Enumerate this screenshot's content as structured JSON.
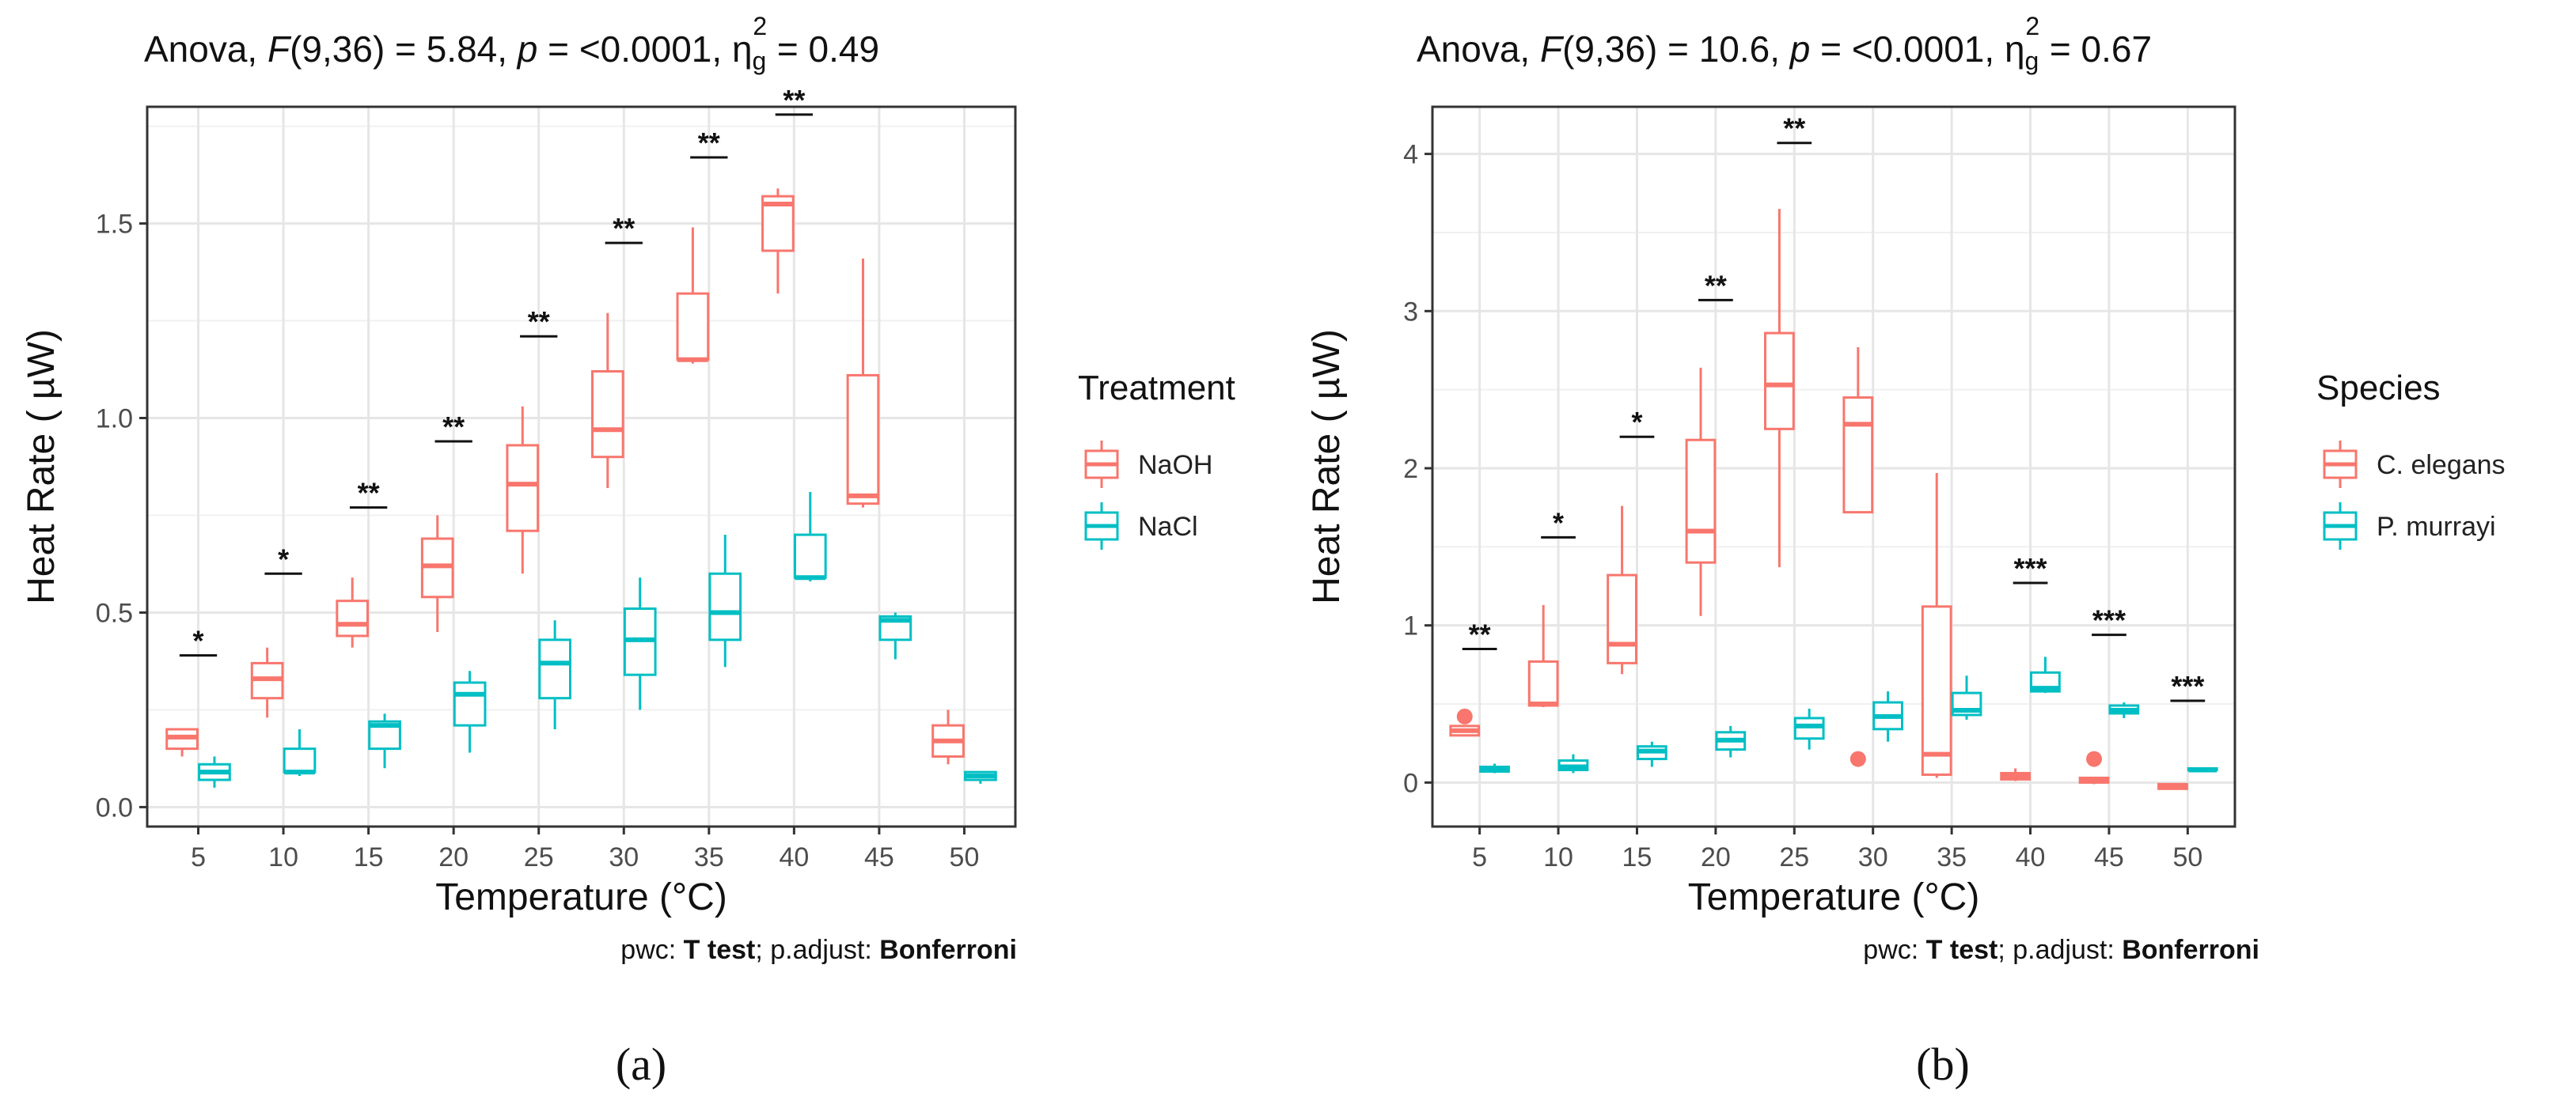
{
  "chart_data": [
    {
      "type": "box",
      "panel_label": "(a)",
      "title": "Anova, F(9,36) = 5.84, p = <0.0001, η²g = 0.49",
      "title_parts": {
        "prefix": "Anova, ",
        "F": "F",
        "F_args": "(9,36) = 5.84, ",
        "p": "p",
        "p_text": " = <0.0001, ",
        "eta": "η",
        "eta_sub": "g",
        "eta_sup": "2",
        "eta_val": " = 0.49"
      },
      "xlabel": "Temperature (°C)",
      "ylabel": "Heat Rate ( µW)",
      "categories": [
        "5",
        "10",
        "15",
        "20",
        "25",
        "30",
        "35",
        "40",
        "45",
        "50"
      ],
      "ylim": [
        -0.05,
        1.8
      ],
      "yticks": [
        0.0,
        0.5,
        1.0,
        1.5
      ],
      "ytick_labels": [
        "0.0",
        "0.5",
        "1.0",
        "1.5"
      ],
      "grid": true,
      "legend_position": "right",
      "legend_title": "Treatment",
      "caption": {
        "pwc_label": "pwc: ",
        "test": "T test",
        "sep": "; p.adjust: ",
        "method": "Bonferroni"
      },
      "series": [
        {
          "name": "NaOH",
          "color": "#F8766D",
          "boxes": [
            {
              "min": 0.13,
              "q1": 0.15,
              "median": 0.18,
              "q3": 0.2,
              "max": 0.2,
              "outliers": []
            },
            {
              "min": 0.23,
              "q1": 0.28,
              "median": 0.33,
              "q3": 0.37,
              "max": 0.41,
              "outliers": []
            },
            {
              "min": 0.41,
              "q1": 0.44,
              "median": 0.47,
              "q3": 0.53,
              "max": 0.59,
              "outliers": []
            },
            {
              "min": 0.45,
              "q1": 0.54,
              "median": 0.62,
              "q3": 0.69,
              "max": 0.75,
              "outliers": []
            },
            {
              "min": 0.6,
              "q1": 0.71,
              "median": 0.83,
              "q3": 0.93,
              "max": 1.03,
              "outliers": []
            },
            {
              "min": 0.82,
              "q1": 0.9,
              "median": 0.97,
              "q3": 1.12,
              "max": 1.27,
              "outliers": []
            },
            {
              "min": 1.14,
              "q1": 1.15,
              "median": 1.15,
              "q3": 1.32,
              "max": 1.49,
              "outliers": []
            },
            {
              "min": 1.32,
              "q1": 1.43,
              "median": 1.55,
              "q3": 1.57,
              "max": 1.59,
              "outliers": []
            },
            {
              "min": 0.77,
              "q1": 0.78,
              "median": 0.8,
              "q3": 1.11,
              "max": 1.41,
              "outliers": []
            },
            {
              "min": 0.11,
              "q1": 0.13,
              "median": 0.17,
              "q3": 0.21,
              "max": 0.25,
              "outliers": []
            }
          ]
        },
        {
          "name": "NaCl",
          "color": "#00BFC4",
          "boxes": [
            {
              "min": 0.05,
              "q1": 0.07,
              "median": 0.09,
              "q3": 0.11,
              "max": 0.13,
              "outliers": []
            },
            {
              "min": 0.08,
              "q1": 0.09,
              "median": 0.09,
              "q3": 0.15,
              "max": 0.2,
              "outliers": []
            },
            {
              "min": 0.1,
              "q1": 0.15,
              "median": 0.21,
              "q3": 0.22,
              "max": 0.24,
              "outliers": []
            },
            {
              "min": 0.14,
              "q1": 0.21,
              "median": 0.29,
              "q3": 0.32,
              "max": 0.35,
              "outliers": []
            },
            {
              "min": 0.2,
              "q1": 0.28,
              "median": 0.37,
              "q3": 0.43,
              "max": 0.48,
              "outliers": []
            },
            {
              "min": 0.25,
              "q1": 0.34,
              "median": 0.43,
              "q3": 0.51,
              "max": 0.59,
              "outliers": []
            },
            {
              "min": 0.36,
              "q1": 0.43,
              "median": 0.5,
              "q3": 0.6,
              "max": 0.7,
              "outliers": []
            },
            {
              "min": 0.58,
              "q1": 0.59,
              "median": 0.59,
              "q3": 0.7,
              "max": 0.81,
              "outliers": []
            },
            {
              "min": 0.38,
              "q1": 0.43,
              "median": 0.48,
              "q3": 0.49,
              "max": 0.5,
              "outliers": []
            },
            {
              "min": 0.06,
              "q1": 0.07,
              "median": 0.08,
              "q3": 0.09,
              "max": 0.09,
              "outliers": []
            }
          ]
        }
      ],
      "significance": [
        {
          "category": "5",
          "label": "*",
          "y": 0.39
        },
        {
          "category": "10",
          "label": "*",
          "y": 0.6
        },
        {
          "category": "15",
          "label": "**",
          "y": 0.77
        },
        {
          "category": "20",
          "label": "**",
          "y": 0.94
        },
        {
          "category": "25",
          "label": "**",
          "y": 1.21
        },
        {
          "category": "30",
          "label": "**",
          "y": 1.45
        },
        {
          "category": "35",
          "label": "**",
          "y": 1.67
        },
        {
          "category": "40",
          "label": "**",
          "y": 1.78
        }
      ]
    },
    {
      "type": "box",
      "panel_label": "(b)",
      "title": "Anova, F(9,36) = 10.6, p = <0.0001, η²g = 0.67",
      "title_parts": {
        "prefix": "Anova, ",
        "F": "F",
        "F_args": "(9,36) = 10.6, ",
        "p": "p",
        "p_text": " = <0.0001, ",
        "eta": "η",
        "eta_sub": "g",
        "eta_sup": "2",
        "eta_val": " = 0.67"
      },
      "xlabel": "Temperature (°C)",
      "ylabel": "Heat Rate ( µW)",
      "categories": [
        "5",
        "10",
        "15",
        "20",
        "25",
        "30",
        "35",
        "40",
        "45",
        "50"
      ],
      "ylim": [
        -0.28,
        4.3
      ],
      "yticks": [
        0,
        1,
        2,
        3,
        4
      ],
      "ytick_labels": [
        "0",
        "1",
        "2",
        "3",
        "4"
      ],
      "grid": true,
      "legend_position": "right",
      "legend_title": "Species",
      "caption": {
        "pwc_label": "pwc: ",
        "test": "T test",
        "sep": "; p.adjust: ",
        "method": "Bonferroni"
      },
      "series": [
        {
          "name": "C. elegans",
          "color": "#F8766D",
          "boxes": [
            {
              "min": 0.3,
              "q1": 0.3,
              "median": 0.33,
              "q3": 0.36,
              "max": 0.36,
              "outliers": [
                0.42
              ]
            },
            {
              "min": 0.48,
              "q1": 0.49,
              "median": 0.5,
              "q3": 0.77,
              "max": 1.13,
              "outliers": []
            },
            {
              "min": 0.69,
              "q1": 0.76,
              "median": 0.88,
              "q3": 1.32,
              "max": 1.76,
              "outliers": []
            },
            {
              "min": 1.06,
              "q1": 1.4,
              "median": 1.6,
              "q3": 2.18,
              "max": 2.64,
              "outliers": []
            },
            {
              "min": 1.37,
              "q1": 2.25,
              "median": 2.53,
              "q3": 2.86,
              "max": 3.65,
              "outliers": []
            },
            {
              "min": 1.72,
              "q1": 1.72,
              "median": 2.28,
              "q3": 2.45,
              "max": 2.77,
              "outliers": [
                0.15
              ]
            },
            {
              "min": 0.03,
              "q1": 0.05,
              "median": 0.18,
              "q3": 1.12,
              "max": 1.97,
              "outliers": []
            },
            {
              "min": 0.01,
              "q1": 0.02,
              "median": 0.04,
              "q3": 0.06,
              "max": 0.09,
              "outliers": []
            },
            {
              "min": -0.01,
              "q1": 0.0,
              "median": 0.01,
              "q3": 0.03,
              "max": 0.03,
              "outliers": [
                0.15
              ]
            },
            {
              "min": -0.04,
              "q1": -0.04,
              "median": -0.02,
              "q3": -0.01,
              "max": -0.01,
              "outliers": []
            }
          ]
        },
        {
          "name": "P. murrayi",
          "color": "#00BFC4",
          "boxes": [
            {
              "min": 0.06,
              "q1": 0.07,
              "median": 0.09,
              "q3": 0.1,
              "max": 0.12,
              "outliers": []
            },
            {
              "min": 0.06,
              "q1": 0.08,
              "median": 0.1,
              "q3": 0.14,
              "max": 0.18,
              "outliers": []
            },
            {
              "min": 0.1,
              "q1": 0.15,
              "median": 0.2,
              "q3": 0.23,
              "max": 0.26,
              "outliers": []
            },
            {
              "min": 0.16,
              "q1": 0.21,
              "median": 0.27,
              "q3": 0.32,
              "max": 0.36,
              "outliers": []
            },
            {
              "min": 0.21,
              "q1": 0.28,
              "median": 0.36,
              "q3": 0.41,
              "max": 0.47,
              "outliers": []
            },
            {
              "min": 0.26,
              "q1": 0.34,
              "median": 0.42,
              "q3": 0.51,
              "max": 0.58,
              "outliers": []
            },
            {
              "min": 0.4,
              "q1": 0.43,
              "median": 0.46,
              "q3": 0.57,
              "max": 0.68,
              "outliers": []
            },
            {
              "min": 0.57,
              "q1": 0.58,
              "median": 0.6,
              "q3": 0.7,
              "max": 0.8,
              "outliers": []
            },
            {
              "min": 0.41,
              "q1": 0.44,
              "median": 0.46,
              "q3": 0.49,
              "max": 0.51,
              "outliers": []
            },
            {
              "min": 0.07,
              "q1": 0.08,
              "median": 0.08,
              "q3": 0.09,
              "max": 0.09,
              "outliers": []
            }
          ]
        }
      ],
      "significance": [
        {
          "category": "5",
          "label": "**",
          "y": 0.85
        },
        {
          "category": "10",
          "label": "*",
          "y": 1.56
        },
        {
          "category": "15",
          "label": "*",
          "y": 2.2
        },
        {
          "category": "20",
          "label": "**",
          "y": 3.07
        },
        {
          "category": "25",
          "label": "**",
          "y": 4.07
        },
        {
          "category": "40",
          "label": "***",
          "y": 1.27
        },
        {
          "category": "45",
          "label": "***",
          "y": 0.94
        },
        {
          "category": "50",
          "label": "***",
          "y": 0.52
        }
      ]
    }
  ]
}
